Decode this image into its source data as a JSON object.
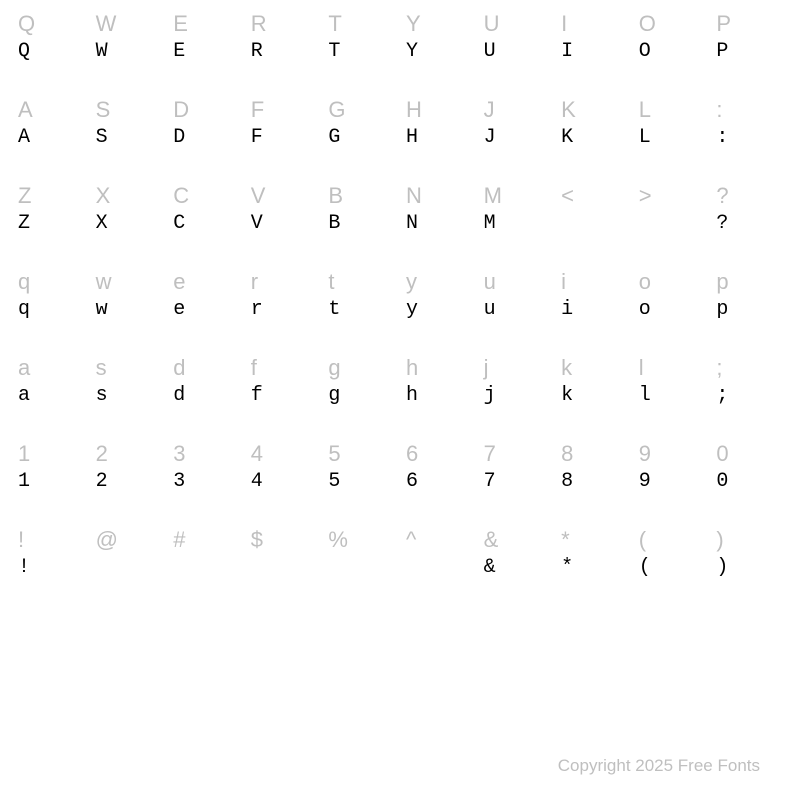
{
  "chart": {
    "type": "font-specimen-grid",
    "background_color": "#ffffff",
    "columns": 10,
    "reference_style": {
      "color": "#bfbfbf",
      "font_family": "sans-serif",
      "font_size_pt": 16
    },
    "sample_style": {
      "color": "#000000",
      "font_family": "typewriter-serif",
      "font_size_pt": 15
    },
    "rows": [
      {
        "ref": [
          "Q",
          "W",
          "E",
          "R",
          "T",
          "Y",
          "U",
          "I",
          "O",
          "P"
        ],
        "sample": [
          "Q",
          "W",
          "E",
          "R",
          "T",
          "Y",
          "U",
          "I",
          "O",
          "P"
        ]
      },
      {
        "ref": [
          "A",
          "S",
          "D",
          "F",
          "G",
          "H",
          "J",
          "K",
          "L",
          ":"
        ],
        "sample": [
          "A",
          "S",
          "D",
          "F",
          "G",
          "H",
          "J",
          "K",
          "L",
          ":"
        ]
      },
      {
        "ref": [
          "Z",
          "X",
          "C",
          "V",
          "B",
          "N",
          "M",
          "<",
          ">",
          "?"
        ],
        "sample": [
          "Z",
          "X",
          "C",
          "V",
          "B",
          "N",
          "M",
          "",
          "",
          "?"
        ]
      },
      {
        "ref": [
          "q",
          "w",
          "e",
          "r",
          "t",
          "y",
          "u",
          "i",
          "o",
          "p"
        ],
        "sample": [
          "q",
          "w",
          "e",
          "r",
          "t",
          "y",
          "u",
          "i",
          "o",
          "p"
        ]
      },
      {
        "ref": [
          "a",
          "s",
          "d",
          "f",
          "g",
          "h",
          "j",
          "k",
          "l",
          ";"
        ],
        "sample": [
          "a",
          "s",
          "d",
          "f",
          "g",
          "h",
          "j",
          "k",
          "l",
          ";"
        ]
      },
      {
        "ref": [
          "1",
          "2",
          "3",
          "4",
          "5",
          "6",
          "7",
          "8",
          "9",
          "0"
        ],
        "sample": [
          "1",
          "2",
          "3",
          "4",
          "5",
          "6",
          "7",
          "8",
          "9",
          "0"
        ]
      },
      {
        "ref": [
          "!",
          "@",
          "#",
          "$",
          "%",
          "^",
          "&",
          "*",
          "(",
          ")"
        ],
        "sample": [
          "!",
          "",
          "",
          "",
          "",
          "",
          "&",
          "*",
          "(",
          ")"
        ]
      }
    ]
  },
  "copyright": "Copyright 2025 Free Fonts"
}
